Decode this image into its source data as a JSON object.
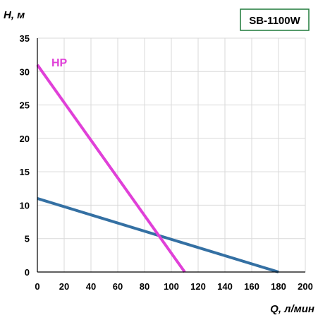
{
  "chart_data": {
    "type": "line",
    "title": "SB-1100W",
    "xlabel": "Q, л/мин",
    "ylabel": "H, м",
    "xlim": [
      0,
      200
    ],
    "ylim": [
      0,
      35
    ],
    "x_ticks": [
      "0",
      "20",
      "40",
      "60",
      "80",
      "100",
      "120",
      "140",
      "160",
      "180",
      "200"
    ],
    "y_ticks": [
      "0",
      "5",
      "10",
      "15",
      "20",
      "25",
      "30",
      "35"
    ],
    "grid": true,
    "series": [
      {
        "name": "",
        "color": "#3470a3",
        "points": [
          [
            0,
            11
          ],
          [
            180,
            0
          ]
        ]
      },
      {
        "name": "HP",
        "color": "#e040d8",
        "points": [
          [
            0,
            31
          ],
          [
            110,
            0
          ]
        ]
      }
    ],
    "colors": {
      "grid": "#d9d9d9",
      "axis": "#000000",
      "title_border": "#1f7a3a"
    }
  }
}
